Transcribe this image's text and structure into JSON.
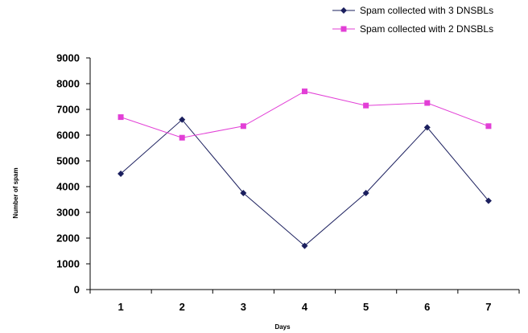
{
  "chart_data": {
    "type": "line",
    "title": "",
    "xlabel": "Days",
    "ylabel": "Number of spam",
    "categories": [
      "1",
      "2",
      "3",
      "4",
      "5",
      "6",
      "7"
    ],
    "ylim": [
      0,
      9000
    ],
    "yticks": [
      "0",
      "1000",
      "2000",
      "3000",
      "4000",
      "5000",
      "6000",
      "7000",
      "8000",
      "9000"
    ],
    "grid": false,
    "legend_position": "top-right",
    "series": [
      {
        "name": "Spam collected with 3 DNSBLs",
        "values": [
          4500,
          6600,
          3750,
          1700,
          3750,
          6300,
          3450
        ],
        "color": "#1b1f5e",
        "marker": "diamond"
      },
      {
        "name": "Spam collected with 2 DNSBLs",
        "values": [
          6700,
          5900,
          6350,
          7700,
          7150,
          7250,
          6350
        ],
        "color": "#e23fd6",
        "marker": "square"
      }
    ]
  }
}
